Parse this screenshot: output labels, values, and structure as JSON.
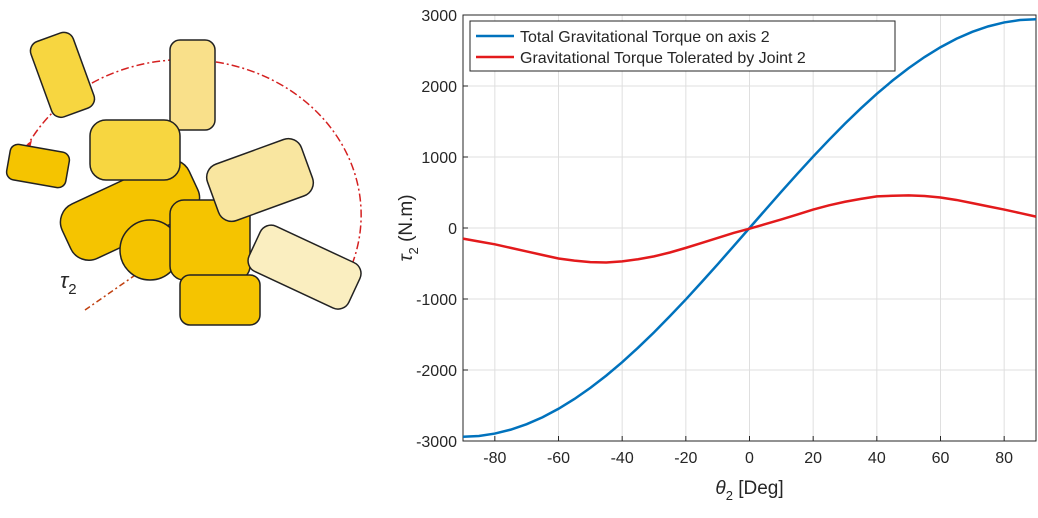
{
  "illustration": {
    "symbol": "τ",
    "subscript": "2"
  },
  "chart_data": {
    "type": "line",
    "xlabel": {
      "symbol": "θ",
      "subscript": "2",
      "text": " [Deg]"
    },
    "ylabel": {
      "symbol": "τ",
      "subscript": "2",
      "text": " (N.m)"
    },
    "x": [
      -90,
      -85,
      -80,
      -75,
      -70,
      -65,
      -60,
      -55,
      -50,
      -45,
      -40,
      -35,
      -30,
      -25,
      -20,
      -15,
      -10,
      -5,
      0,
      5,
      10,
      15,
      20,
      25,
      30,
      35,
      40,
      45,
      50,
      55,
      60,
      65,
      70,
      75,
      80,
      85,
      90
    ],
    "series": [
      {
        "name": "Total Gravitational Torque on axis 2",
        "color": "#0072bd",
        "values": [
          -2940,
          -2929,
          -2895,
          -2840,
          -2763,
          -2665,
          -2546,
          -2408,
          -2252,
          -2079,
          -1890,
          -1686,
          -1470,
          -1242,
          -1006,
          -761,
          -511,
          -256,
          0,
          256,
          511,
          761,
          1006,
          1242,
          1470,
          1686,
          1890,
          2079,
          2252,
          2408,
          2546,
          2665,
          2763,
          2840,
          2895,
          2929,
          2940
        ]
      },
      {
        "name": "Gravitational Torque Tolerated by Joint 2",
        "color": "#e31a1c",
        "values": [
          -150,
          -190,
          -230,
          -280,
          -330,
          -380,
          -430,
          -460,
          -480,
          -485,
          -470,
          -440,
          -400,
          -345,
          -280,
          -210,
          -140,
          -70,
          -10,
          55,
          120,
          190,
          260,
          320,
          370,
          410,
          445,
          455,
          460,
          450,
          430,
          395,
          350,
          305,
          260,
          210,
          160
        ]
      }
    ],
    "xlim": [
      -90,
      90
    ],
    "xticks": [
      -80,
      -60,
      -40,
      -20,
      0,
      20,
      40,
      60,
      80
    ],
    "ylim": [
      -3000,
      3000
    ],
    "yticks": [
      -3000,
      -2000,
      -1000,
      0,
      1000,
      2000,
      3000
    ],
    "grid": true,
    "legend": "top-left"
  }
}
